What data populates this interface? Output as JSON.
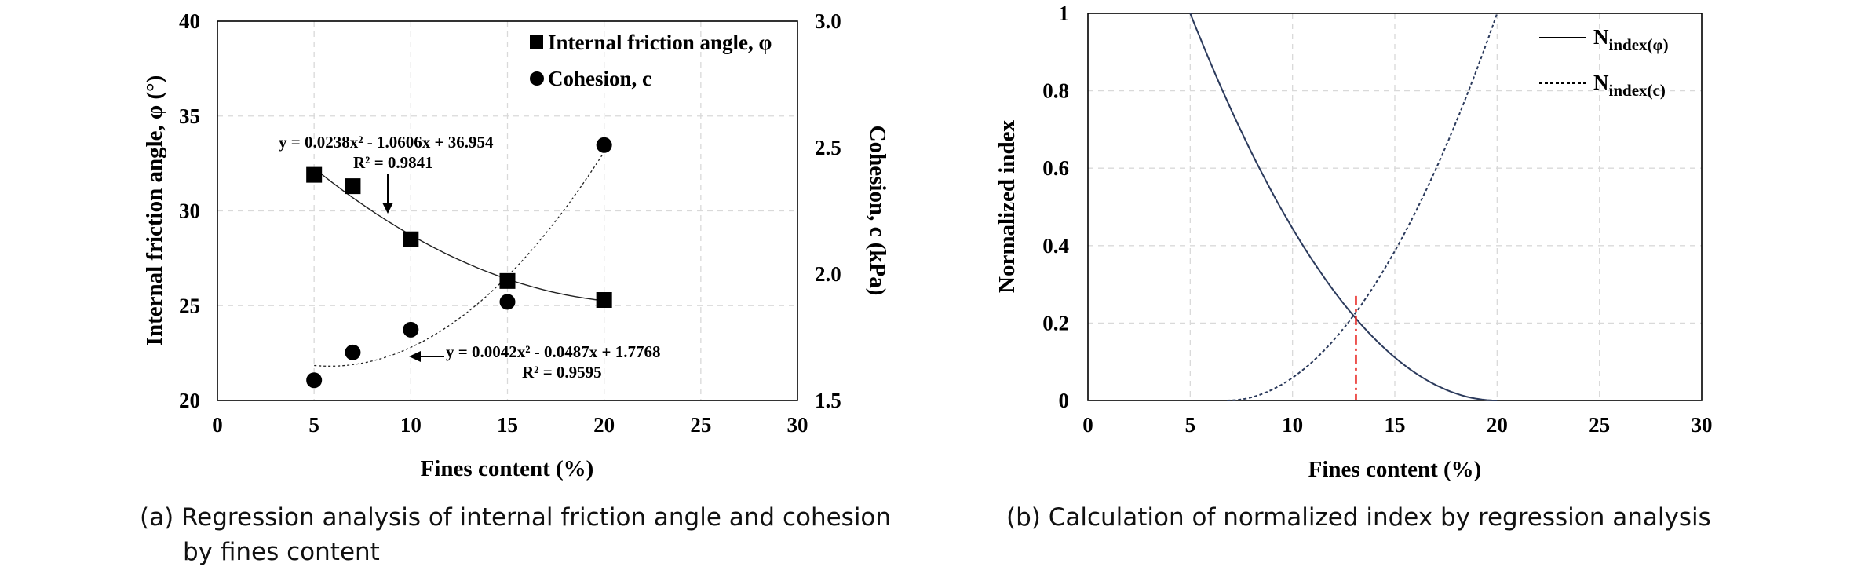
{
  "chart_data": [
    {
      "type": "scatter",
      "panel": "a",
      "xlabel": "Fines content (%)",
      "ylabel": "Internal friction angle, φ (°)",
      "y2label": "Cohesion, c (kPa)",
      "xlim": [
        0,
        30
      ],
      "ylim": [
        20,
        40
      ],
      "y2lim": [
        1.5,
        3.0
      ],
      "xticks": [
        "0",
        "5",
        "10",
        "15",
        "20",
        "25",
        "30"
      ],
      "yticks": [
        "20",
        "25",
        "30",
        "35",
        "40"
      ],
      "y2ticks": [
        "1.5",
        "2.0",
        "2.5",
        "3.0"
      ],
      "grid": true,
      "legend_position": "top-right",
      "series": [
        {
          "name": "Internal friction angle, φ",
          "marker": "square",
          "axis": "left",
          "x": [
            5,
            7,
            10,
            15,
            20
          ],
          "y": [
            31.9,
            31.3,
            28.5,
            26.3,
            25.3
          ],
          "fit": {
            "a": 0.0238,
            "b": -1.0606,
            "c": 36.954,
            "x_range": [
              5,
              20
            ],
            "style": "solid"
          }
        },
        {
          "name": "Cohesion, c",
          "marker": "circle",
          "axis": "right",
          "x": [
            5,
            7,
            10,
            15,
            20
          ],
          "y": [
            1.58,
            1.69,
            1.78,
            1.89,
            2.51
          ],
          "fit": {
            "a": 0.0042,
            "b": -0.0487,
            "c": 1.7768,
            "x_range": [
              5,
              20
            ],
            "style": "dotted"
          }
        }
      ],
      "annotations": [
        {
          "line1": "y = 0.0238x² - 1.0606x + 36.954",
          "line2": "R² = 0.9841"
        },
        {
          "line1": "y = 0.0042x² - 0.0487x + 1.7768",
          "line2": "R² = 0.9595"
        }
      ]
    },
    {
      "type": "line",
      "panel": "b",
      "xlabel": "Fines content (%)",
      "ylabel": "Normalized  index",
      "xlim": [
        0,
        30
      ],
      "ylim": [
        0,
        1
      ],
      "xticks": [
        "0",
        "5",
        "10",
        "15",
        "20",
        "25",
        "30"
      ],
      "yticks": [
        "0",
        "0.2",
        "0.4",
        "0.6",
        "0.8",
        "1"
      ],
      "grid": true,
      "legend_position": "top-right",
      "series": [
        {
          "name": "N",
          "subscript": "index(φ)",
          "style": "solid",
          "x_range": [
            5,
            20
          ],
          "from": 1,
          "to": 0
        },
        {
          "name": "N",
          "subscript": "index(c)",
          "style": "dashed",
          "x_range": [
            6.8,
            20
          ],
          "from": 0,
          "to": 1
        }
      ],
      "intersection": {
        "x": 13.1,
        "y": 0.27
      }
    }
  ],
  "captions": {
    "a_line1": "(a)  Regression analysis of internal friction angle and cohesion",
    "a_line2": "by fines content",
    "b": "(b)  Calculation of normalized index by regression analysis"
  },
  "colors": {
    "curve": "#2b3a5c",
    "intersection": "#e8201c",
    "grid": "#d9d9d9",
    "marker": "#000000"
  }
}
